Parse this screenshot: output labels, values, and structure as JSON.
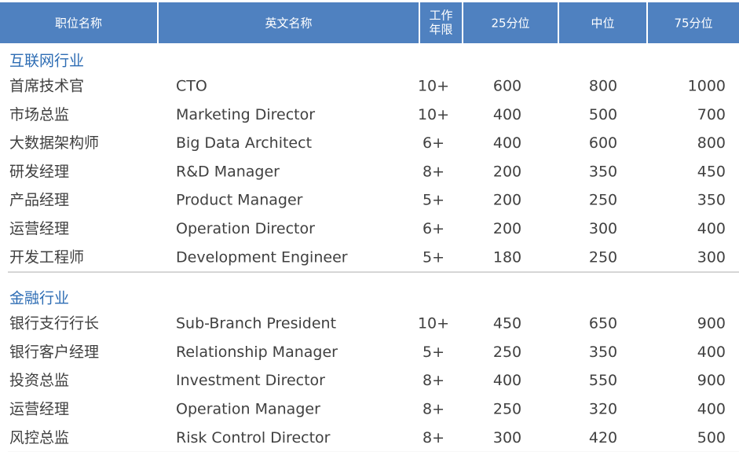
{
  "table": {
    "header": [
      "职位名称",
      "英文名称",
      [
        "工作",
        "年限"
      ],
      "25分位",
      "中位",
      "75分位"
    ],
    "sections": [
      {
        "title": "互联网行业",
        "rows": [
          [
            "首席技术官",
            "CTO",
            "10+",
            600,
            800,
            1000
          ],
          [
            "市场总监",
            "Marketing Director",
            "10+",
            400,
            500,
            700
          ],
          [
            "大数据架构师",
            "Big Data Architect",
            "6+",
            400,
            600,
            800
          ],
          [
            "研发经理",
            "R&D Manager",
            "8+",
            200,
            350,
            450
          ],
          [
            "产品经理",
            "Product Manager",
            "5+",
            200,
            250,
            350
          ],
          [
            "运营经理",
            "Operation Director",
            "6+",
            200,
            300,
            400
          ],
          [
            "开发工程师",
            "Development Engineer",
            "5+",
            180,
            250,
            300
          ]
        ]
      },
      {
        "title": "金融行业",
        "rows": [
          [
            "银行支行行长",
            "Sub-Branch President",
            "10+",
            450,
            650,
            900
          ],
          [
            "银行客户经理",
            "Relationship Manager",
            "5+",
            250,
            350,
            400
          ],
          [
            "投资总监",
            "Investment Director",
            "8+",
            400,
            550,
            900
          ],
          [
            "运营经理",
            "Operation Manager",
            "8+",
            250,
            320,
            400
          ],
          [
            "风控总监",
            "Risk Control Director",
            "8+",
            300,
            420,
            500
          ]
        ]
      }
    ]
  }
}
